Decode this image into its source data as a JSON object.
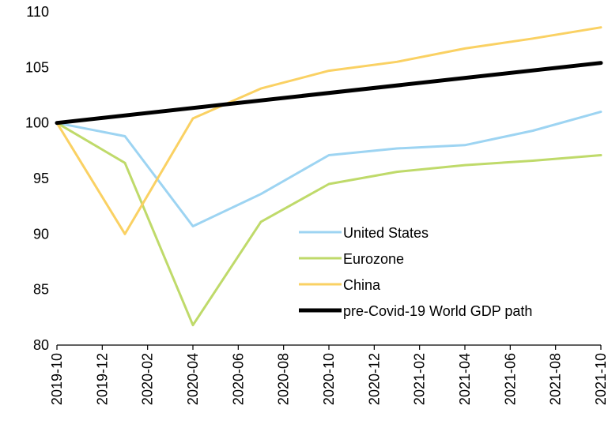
{
  "chart_data": {
    "type": "line",
    "x": [
      "2019-10",
      "2019-12",
      "2020-02",
      "2020-04",
      "2020-06",
      "2020-08",
      "2020-10",
      "2020-12",
      "2021-02",
      "2021-04",
      "2021-06",
      "2021-08",
      "2021-10"
    ],
    "x_tick_labels": [
      "2019-10",
      "2019-12",
      "2020-02",
      "2020-04",
      "2020-06",
      "2020-08",
      "2020-10",
      "2020-12",
      "2021-02",
      "2021-04",
      "2021-06",
      "2021-08",
      "2021-10"
    ],
    "ylim": [
      80,
      110
    ],
    "y_ticks": [
      "80",
      "85",
      "90",
      "95",
      "100",
      "105",
      "110"
    ],
    "title": "",
    "xlabel": "",
    "ylabel": "",
    "grid": false,
    "legend_position": "bottom-right",
    "series": [
      {
        "name": "United States",
        "color": "#9DD4F2",
        "points": [
          [
            "2019-10",
            100
          ],
          [
            "2020-01",
            98.8
          ],
          [
            "2020-04",
            90.7
          ],
          [
            "2020-07",
            93.6
          ],
          [
            "2020-10",
            97.1
          ],
          [
            "2021-01",
            97.7
          ],
          [
            "2021-04",
            98.0
          ],
          [
            "2021-07",
            99.3
          ],
          [
            "2021-10",
            101.0
          ]
        ]
      },
      {
        "name": "Eurozone",
        "color": "#BFDA6A",
        "points": [
          [
            "2019-10",
            100
          ],
          [
            "2020-01",
            96.4
          ],
          [
            "2020-04",
            81.8
          ],
          [
            "2020-07",
            91.1
          ],
          [
            "2020-10",
            94.5
          ],
          [
            "2021-01",
            95.6
          ],
          [
            "2021-04",
            96.2
          ],
          [
            "2021-07",
            96.6
          ],
          [
            "2021-10",
            97.1
          ]
        ]
      },
      {
        "name": "China",
        "color": "#FAD163",
        "points": [
          [
            "2019-10",
            100
          ],
          [
            "2020-01",
            90.0
          ],
          [
            "2020-04",
            100.4
          ],
          [
            "2020-07",
            103.1
          ],
          [
            "2020-10",
            104.7
          ],
          [
            "2021-01",
            105.5
          ],
          [
            "2021-04",
            106.7
          ],
          [
            "2021-07",
            107.6
          ],
          [
            "2021-10",
            108.6
          ]
        ]
      },
      {
        "name": "pre-Covid-19 World GDP path",
        "color": "#000000",
        "points": [
          [
            "2019-10",
            100
          ],
          [
            "2021-10",
            105.4
          ]
        ]
      }
    ]
  }
}
